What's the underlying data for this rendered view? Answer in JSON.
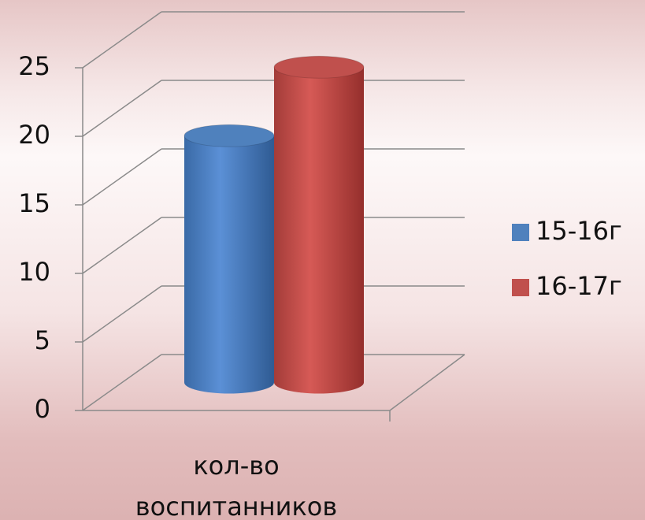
{
  "chart_data": {
    "type": "bar3d",
    "categories": [
      "кол-во воспитанников"
    ],
    "series": [
      {
        "name": "15-16г",
        "color": "#4f81bd",
        "values": [
          18
        ]
      },
      {
        "name": "16-17г",
        "color": "#c0504d",
        "values": [
          23
        ]
      }
    ],
    "ylim": [
      0,
      25
    ],
    "yticks": [
      0,
      5,
      10,
      15,
      20,
      25
    ],
    "grid": true,
    "legend": "right"
  }
}
